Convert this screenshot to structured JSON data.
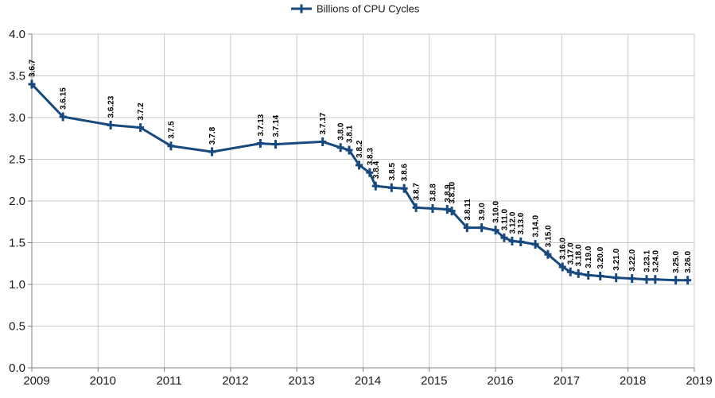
{
  "chart_data": {
    "type": "line",
    "title": "",
    "legend": {
      "label": "Billions of CPU Cycles",
      "position": "top-center"
    },
    "xlabel": "",
    "ylabel": "",
    "x_axis": {
      "min": 2009,
      "max": 2019,
      "tick_interval": 1,
      "tick_labels": [
        "2009",
        "2010",
        "2011",
        "2012",
        "2013",
        "2014",
        "2015",
        "2016",
        "2017",
        "2018",
        "2019"
      ]
    },
    "y_axis": {
      "min": 0.0,
      "max": 4.0,
      "tick_interval": 0.5,
      "tick_labels": [
        "0.0",
        "0.5",
        "1.0",
        "1.5",
        "2.0",
        "2.5",
        "3.0",
        "3.5",
        "4.0"
      ]
    },
    "grid": "both",
    "data_label_rotation_deg": 90,
    "marker": "plus",
    "colors": {
      "series": "#17497E",
      "grid_line": "#c9c9c9",
      "axis_line": "#808080",
      "text": "#1a1a1a",
      "background": "#ffffff"
    },
    "series": [
      {
        "name": "Billions of CPU Cycles",
        "points": [
          {
            "label": "3.6.7",
            "x": 2009.0,
            "y": 3.4
          },
          {
            "label": "3.6.15",
            "x": 2009.47,
            "y": 3.01
          },
          {
            "label": "3.6.23",
            "x": 2010.19,
            "y": 2.91
          },
          {
            "label": "3.7.2",
            "x": 2010.64,
            "y": 2.88
          },
          {
            "label": "3.7.5",
            "x": 2011.1,
            "y": 2.66
          },
          {
            "label": "3.7.8",
            "x": 2011.72,
            "y": 2.59
          },
          {
            "label": "3.7.13",
            "x": 2012.45,
            "y": 2.69
          },
          {
            "label": "3.7.14",
            "x": 2012.68,
            "y": 2.68
          },
          {
            "label": "3.7.17",
            "x": 2013.39,
            "y": 2.71
          },
          {
            "label": "3.8.0",
            "x": 2013.66,
            "y": 2.64
          },
          {
            "label": "3.8.1",
            "x": 2013.79,
            "y": 2.61
          },
          {
            "label": "3.8.2",
            "x": 2013.94,
            "y": 2.43
          },
          {
            "label": "3.8.3",
            "x": 2014.1,
            "y": 2.34
          },
          {
            "label": "3.8.4",
            "x": 2014.19,
            "y": 2.18
          },
          {
            "label": "3.8.5",
            "x": 2014.43,
            "y": 2.16
          },
          {
            "label": "3.8.6",
            "x": 2014.62,
            "y": 2.15
          },
          {
            "label": "3.8.7",
            "x": 2014.8,
            "y": 1.92
          },
          {
            "label": "3.8.8",
            "x": 2015.05,
            "y": 1.91
          },
          {
            "label": "3.8.9",
            "x": 2015.27,
            "y": 1.9
          },
          {
            "label": "3.8.10",
            "x": 2015.34,
            "y": 1.88
          },
          {
            "label": "3.8.11",
            "x": 2015.57,
            "y": 1.68
          },
          {
            "label": "3.9.0",
            "x": 2015.79,
            "y": 1.68
          },
          {
            "label": "3.10.0",
            "x": 2016.0,
            "y": 1.65
          },
          {
            "label": "3.11.0",
            "x": 2016.13,
            "y": 1.56
          },
          {
            "label": "3.12.0",
            "x": 2016.25,
            "y": 1.52
          },
          {
            "label": "3.13.0",
            "x": 2016.38,
            "y": 1.51
          },
          {
            "label": "3.14.0",
            "x": 2016.6,
            "y": 1.48
          },
          {
            "label": "3.15.0",
            "x": 2016.79,
            "y": 1.36
          },
          {
            "label": "3.16.0",
            "x": 2017.01,
            "y": 1.21
          },
          {
            "label": "3.17.0",
            "x": 2017.13,
            "y": 1.15
          },
          {
            "label": "3.18.0",
            "x": 2017.25,
            "y": 1.13
          },
          {
            "label": "3.19.0",
            "x": 2017.4,
            "y": 1.11
          },
          {
            "label": "3.20.0",
            "x": 2017.58,
            "y": 1.1
          },
          {
            "label": "3.21.0",
            "x": 2017.82,
            "y": 1.08
          },
          {
            "label": "3.22.0",
            "x": 2018.06,
            "y": 1.07
          },
          {
            "label": "3.23.1",
            "x": 2018.28,
            "y": 1.06
          },
          {
            "label": "3.24.0",
            "x": 2018.41,
            "y": 1.06
          },
          {
            "label": "3.25.0",
            "x": 2018.72,
            "y": 1.05
          },
          {
            "label": "3.26.0",
            "x": 2018.9,
            "y": 1.05
          }
        ]
      }
    ]
  }
}
